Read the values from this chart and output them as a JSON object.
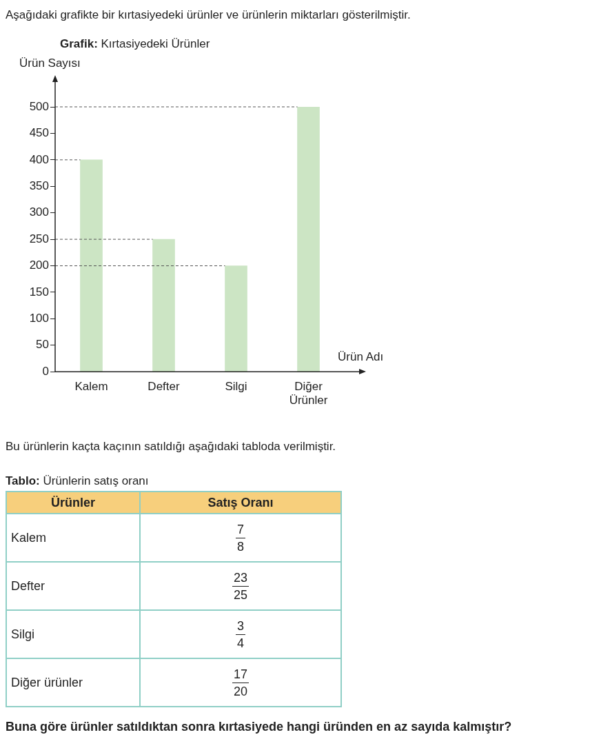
{
  "chart_data": [
    {
      "type": "bar",
      "title": "Grafik: Kırtasiyedeki Ürünler",
      "ylabel": "Ürün Sayısı",
      "xlabel": "Ürün Adı",
      "categories": [
        "Kalem",
        "Defter",
        "Silgi",
        "Diğer\nÜrünler"
      ],
      "values": [
        400,
        250,
        200,
        500
      ],
      "color": "#cce5c4",
      "ylim": [
        0,
        500
      ],
      "yticks": [
        0,
        50,
        100,
        150,
        200,
        250,
        300,
        350,
        400,
        450,
        500
      ],
      "grid": false,
      "legend": false,
      "ref_lines": [
        {
          "axis": "y",
          "value": 500,
          "label": null,
          "line_style": "dashed",
          "color": "#555555"
        },
        {
          "axis": "y",
          "value": 400,
          "label": null,
          "line_style": "dashed",
          "color": "#555555"
        },
        {
          "axis": "y",
          "value": 250,
          "label": null,
          "line_style": "dashed",
          "color": "#555555"
        },
        {
          "axis": "y",
          "value": 200,
          "label": null,
          "line_style": "dashed",
          "color": "#555555"
        }
      ],
      "annotations": [
        "Aşağıdaki grafikte bir kırtasiyedeki ürünler ve ürünlerin miktarları gösterilmiştir.",
        "Bu ürünlerin kaçta kaçının satıldığı aşağıdaki tabloda verilmiştir."
      ]
    },
    {
      "type": "other",
      "title": "Tablo: Ürünlerin satış oranı",
      "categories": [
        "Ürünler",
        "Satış Oranı"
      ],
      "y_categories": [
        "Kalem",
        "Defter",
        "Silgi",
        "Diğer ürünler"
      ],
      "cell_labels": [
        [
          "7",
          "8"
        ],
        [
          "23",
          "25"
        ],
        [
          "3",
          "4"
        ],
        [
          "17",
          "20"
        ]
      ],
      "annotations": [
        "Buna göre ürünler satıldıktan sonra kırtasiyede hangi üründen en az sayıda kalmıştır?"
      ]
    }
  ]
}
